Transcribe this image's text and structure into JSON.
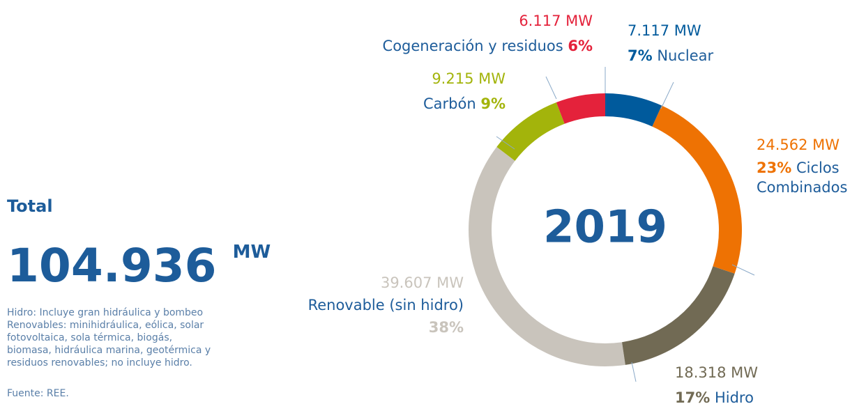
{
  "chart_data": {
    "type": "donut",
    "center_label": "2019",
    "categories": [
      "Nuclear",
      "Ciclos Combinados",
      "Hidro",
      "Renovable (sin hidro)",
      "Carbón",
      "Cogeneración y residuos"
    ],
    "values": [
      7117,
      24562,
      18318,
      39607,
      9215,
      6117
    ],
    "value_labels": [
      "7.117 MW",
      "24.562 MW",
      "18.318 MW",
      "39.607 MW",
      "9.215 MW",
      "6.117 MW"
    ],
    "percents": [
      7,
      23,
      17,
      38,
      9,
      6
    ],
    "percent_labels": [
      "7%",
      "23%",
      "17%",
      "38%",
      "9%",
      "6%"
    ],
    "colors": [
      "#005a9c",
      "#ee7203",
      "#716a54",
      "#c9c4bc",
      "#a3b40b",
      "#e4223b"
    ]
  },
  "summary": {
    "heading": "Total",
    "total": "104.936",
    "unit": "MW"
  },
  "notes": [
    "Hidro: Incluye gran hidráulica y bombeo",
    "Renovables: minihidráulica, eólica, solar fotovoltaica, sola térmica, biogás, biomasa, hidráulica marina, geotérmica y residuos renovables; no incluye hidro."
  ],
  "source": "Fuente: REE."
}
